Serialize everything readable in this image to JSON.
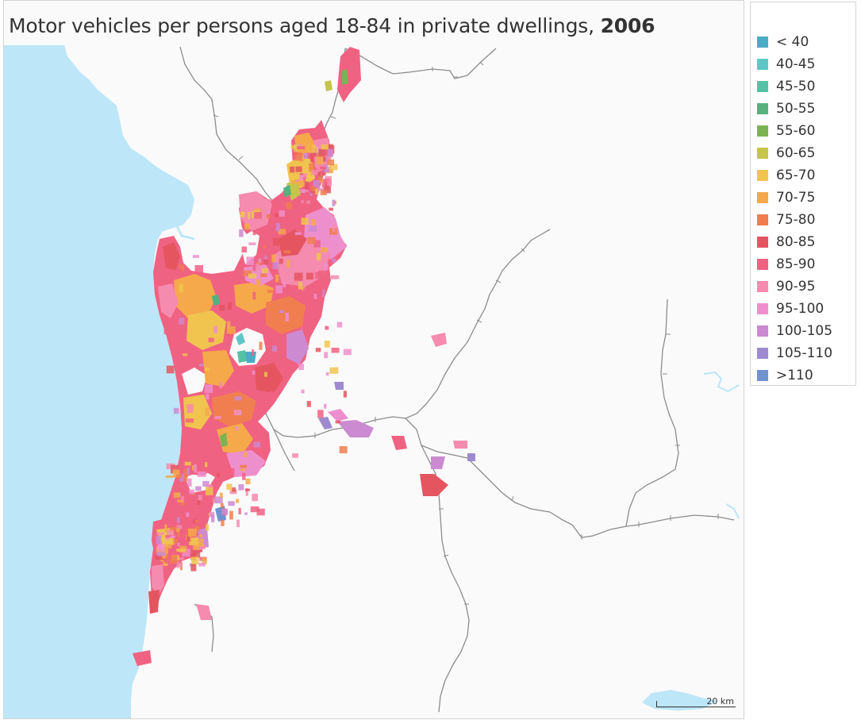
{
  "title": {
    "text": "Motor vehicles per persons aged 18-84 in private dwellings,",
    "year": "2006"
  },
  "legend": [
    {
      "label": "< 40",
      "color": "#4bacc6"
    },
    {
      "label": "40-45",
      "color": "#5ec6c6"
    },
    {
      "label": "45-50",
      "color": "#56c2a5"
    },
    {
      "label": "50-55",
      "color": "#56b07e"
    },
    {
      "label": "55-60",
      "color": "#7bb352"
    },
    {
      "label": "60-65",
      "color": "#c5c54a"
    },
    {
      "label": "65-70",
      "color": "#f0c44f"
    },
    {
      "label": "70-75",
      "color": "#f5a94a"
    },
    {
      "label": "75-80",
      "color": "#f07e4f"
    },
    {
      "label": "80-85",
      "color": "#e4555f"
    },
    {
      "label": "85-90",
      "color": "#f06282"
    },
    {
      "label": "90-95",
      "color": "#f58bae"
    },
    {
      "label": "95-100",
      "color": "#ee8fcd"
    },
    {
      "label": "100-105",
      "color": "#cc8ad1"
    },
    {
      "label": "105-110",
      "color": "#9e8bcf"
    },
    {
      "label": ">110",
      "color": "#6f93cd"
    }
  ],
  "scale_bar": {
    "label": "20 km"
  },
  "colors": {
    "sea": "#bde6f9",
    "land": "#fafafa",
    "rail": "#8c8c8c"
  }
}
